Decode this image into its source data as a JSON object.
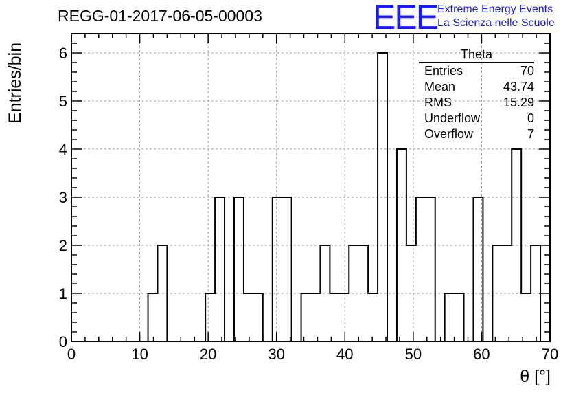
{
  "page_title": "REGG-01-2017-06-05-00003",
  "branding": {
    "logo_text": "EEE",
    "line1": "Extreme Energy Events",
    "line2": "La Scienza nelle Scuole",
    "color": "#1a1aff"
  },
  "stats_box": {
    "title": "Theta",
    "rows": [
      {
        "label": "Entries",
        "value": "70"
      },
      {
        "label": "Mean",
        "value": "43.74"
      },
      {
        "label": "RMS",
        "value": "15.29"
      },
      {
        "label": "Underflow",
        "value": "0"
      },
      {
        "label": "Overflow",
        "value": "7"
      }
    ]
  },
  "chart_data": {
    "type": "bar",
    "title": "REGG-01-2017-06-05-00003",
    "xlabel": "θ [°]",
    "ylabel": "Entries/bin",
    "xlim": [
      0,
      70
    ],
    "ylim": [
      0,
      6.4
    ],
    "bin_width": 1.4,
    "grid": true,
    "x_ticks": [
      0,
      10,
      20,
      30,
      40,
      50,
      60,
      70
    ],
    "y_ticks": [
      0,
      1,
      2,
      3,
      4,
      5,
      6
    ],
    "values": [
      0,
      0,
      0,
      0,
      0,
      0,
      0,
      0,
      1,
      2,
      0,
      0,
      0,
      0,
      1,
      3,
      0,
      3,
      1,
      1,
      0,
      3,
      3,
      0,
      1,
      1,
      2,
      1,
      1,
      2,
      2,
      1,
      6,
      0,
      4,
      2,
      3,
      3,
      0,
      1,
      1,
      0,
      3,
      0,
      2,
      2,
      4,
      1,
      2,
      0
    ]
  }
}
